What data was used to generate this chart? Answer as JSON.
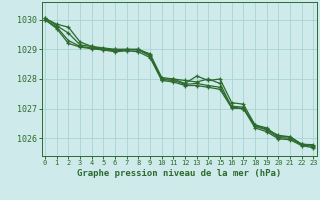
{
  "title": "Graphe pression niveau de la mer (hPa)",
  "bg_color": "#ceeaea",
  "grid_color": "#aad4d4",
  "line_color": "#2d6b2d",
  "x_ticks": [
    0,
    1,
    2,
    3,
    4,
    5,
    6,
    7,
    8,
    9,
    10,
    11,
    12,
    13,
    14,
    15,
    16,
    17,
    18,
    19,
    20,
    21,
    22,
    23
  ],
  "y_ticks": [
    1026,
    1027,
    1028,
    1029,
    1030
  ],
  "ylim": [
    1025.4,
    1030.6
  ],
  "xlim": [
    -0.3,
    23.3
  ],
  "series": [
    [
      1030.05,
      1029.85,
      1029.75,
      1029.25,
      1029.1,
      1029.05,
      1029.0,
      1029.0,
      1029.0,
      1028.85,
      1028.05,
      1028.0,
      1027.95,
      1027.9,
      1028.0,
      1027.85,
      1027.05,
      1027.0,
      1026.45,
      1026.3,
      1026.1,
      1026.05,
      1025.8,
      1025.78
    ],
    [
      1030.05,
      1029.8,
      1029.55,
      1029.15,
      1029.1,
      1029.0,
      1029.0,
      1029.0,
      1029.0,
      1028.8,
      1028.0,
      1028.0,
      1027.85,
      1028.1,
      1027.95,
      1028.0,
      1027.2,
      1027.15,
      1026.45,
      1026.35,
      1026.05,
      1026.05,
      1025.8,
      1025.75
    ],
    [
      1030.0,
      1029.75,
      1029.3,
      1029.1,
      1029.05,
      1029.0,
      1028.95,
      1028.98,
      1028.98,
      1028.78,
      1027.98,
      1027.95,
      1027.82,
      1027.85,
      1027.78,
      1027.72,
      1027.08,
      1027.05,
      1026.4,
      1026.28,
      1026.02,
      1026.0,
      1025.78,
      1025.72
    ],
    [
      1030.0,
      1029.7,
      1029.2,
      1029.08,
      1029.02,
      1028.98,
      1028.92,
      1028.95,
      1028.92,
      1028.72,
      1027.95,
      1027.9,
      1027.78,
      1027.78,
      1027.72,
      1027.65,
      1027.02,
      1027.0,
      1026.35,
      1026.22,
      1025.98,
      1025.95,
      1025.75,
      1025.68
    ]
  ]
}
